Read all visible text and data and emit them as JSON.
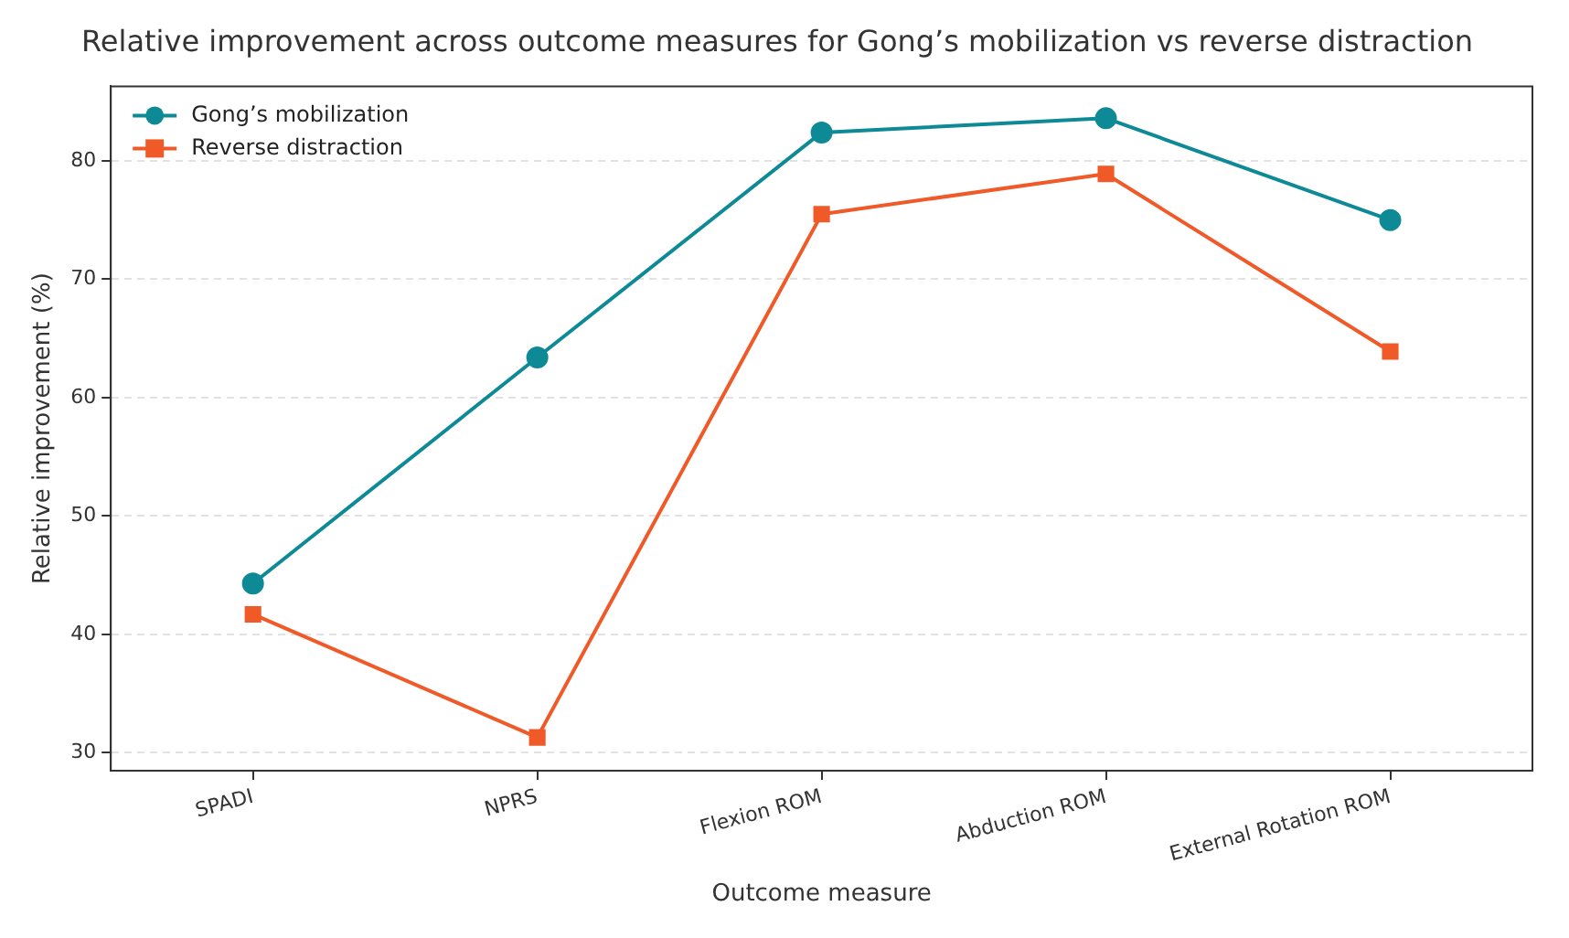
{
  "chart_data": {
    "type": "line",
    "title": "Relative improvement across outcome measures for Gong’s mobilization vs reverse distraction",
    "xlabel": "Outcome measure",
    "ylabel": "Relative improvement (%)",
    "categories": [
      "SPADI",
      "NPRS",
      "Flexion ROM",
      "Abduction ROM",
      "External Rotation ROM"
    ],
    "series": [
      {
        "name": "Gong’s mobilization",
        "color": "#0e8a96",
        "marker": "circle",
        "values": [
          44.3,
          63.4,
          82.4,
          83.6,
          75.0
        ]
      },
      {
        "name": "Reverse distraction",
        "color": "#f05a28",
        "marker": "square",
        "values": [
          41.7,
          31.3,
          75.5,
          78.9,
          63.9
        ]
      }
    ],
    "ylim": [
      28.5,
      86.3
    ],
    "yticks": [
      30,
      40,
      50,
      60,
      70,
      80
    ],
    "grid": "y",
    "legend": "top left",
    "line_style": "solid"
  }
}
